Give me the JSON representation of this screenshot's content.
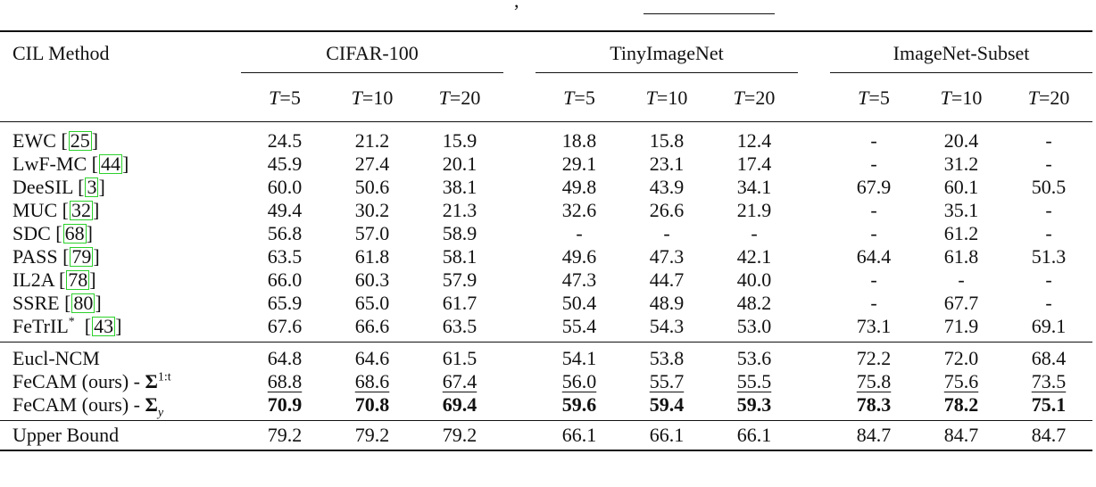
{
  "top_fragment": {
    "text": ","
  },
  "header": {
    "method": "CIL Method",
    "groups": [
      "CIFAR-100",
      "TinyImageNet",
      "ImageNet-Subset"
    ],
    "subcols": [
      {
        "var": "T",
        "eq": "=5"
      },
      {
        "var": "T",
        "eq": "=10"
      },
      {
        "var": "T",
        "eq": "=20"
      }
    ]
  },
  "rows_baselines": [
    {
      "name": "EWC",
      "cite": "25",
      "values": [
        "24.5",
        "21.2",
        "15.9",
        "18.8",
        "15.8",
        "12.4",
        "-",
        "20.4",
        "-"
      ]
    },
    {
      "name": "LwF-MC",
      "cite": "44",
      "values": [
        "45.9",
        "27.4",
        "20.1",
        "29.1",
        "23.1",
        "17.4",
        "-",
        "31.2",
        "-"
      ]
    },
    {
      "name": "DeeSIL",
      "cite": "3",
      "values": [
        "60.0",
        "50.6",
        "38.1",
        "49.8",
        "43.9",
        "34.1",
        "67.9",
        "60.1",
        "50.5"
      ]
    },
    {
      "name": "MUC",
      "cite": "32",
      "values": [
        "49.4",
        "30.2",
        "21.3",
        "32.6",
        "26.6",
        "21.9",
        "-",
        "35.1",
        "-"
      ]
    },
    {
      "name": "SDC",
      "cite": "68",
      "values": [
        "56.8",
        "57.0",
        "58.9",
        "-",
        "-",
        "-",
        "-",
        "61.2",
        "-"
      ]
    },
    {
      "name": "PASS",
      "cite": "79",
      "values": [
        "63.5",
        "61.8",
        "58.1",
        "49.6",
        "47.3",
        "42.1",
        "64.4",
        "61.8",
        "51.3"
      ]
    },
    {
      "name": "IL2A",
      "cite": "78",
      "values": [
        "66.0",
        "60.3",
        "57.9",
        "47.3",
        "44.7",
        "40.0",
        "-",
        "-",
        "-"
      ]
    },
    {
      "name": "SSRE",
      "cite": "80",
      "values": [
        "65.9",
        "65.0",
        "61.7",
        "50.4",
        "48.9",
        "48.2",
        "-",
        "67.7",
        "-"
      ]
    },
    {
      "name": "FeTrIL",
      "sup": "*",
      "cite": "43",
      "values": [
        "67.6",
        "66.6",
        "63.5",
        "55.4",
        "54.3",
        "53.0",
        "73.1",
        "71.9",
        "69.1"
      ]
    }
  ],
  "rows_ours": [
    {
      "name": "Eucl-NCM",
      "style": "plain",
      "values": [
        "64.8",
        "64.6",
        "61.5",
        "54.1",
        "53.8",
        "53.6",
        "72.2",
        "72.0",
        "68.4"
      ]
    },
    {
      "name": "FeCAM (ours) - ",
      "sym": "Σ",
      "symsup": "1:t",
      "style": "underline",
      "values": [
        "68.8",
        "68.6",
        "67.4",
        "56.0",
        "55.7",
        "55.5",
        "75.8",
        "75.6",
        "73.5"
      ]
    },
    {
      "name": "FeCAM (ours) - ",
      "sym": "Σ",
      "symsub": "y",
      "style": "bold",
      "values": [
        "70.9",
        "70.8",
        "69.4",
        "59.6",
        "59.4",
        "59.3",
        "78.3",
        "78.2",
        "75.1"
      ]
    }
  ],
  "row_upper": {
    "name": "Upper Bound",
    "values": [
      "79.2",
      "79.2",
      "79.2",
      "66.1",
      "66.1",
      "66.1",
      "84.7",
      "84.7",
      "84.7"
    ]
  }
}
